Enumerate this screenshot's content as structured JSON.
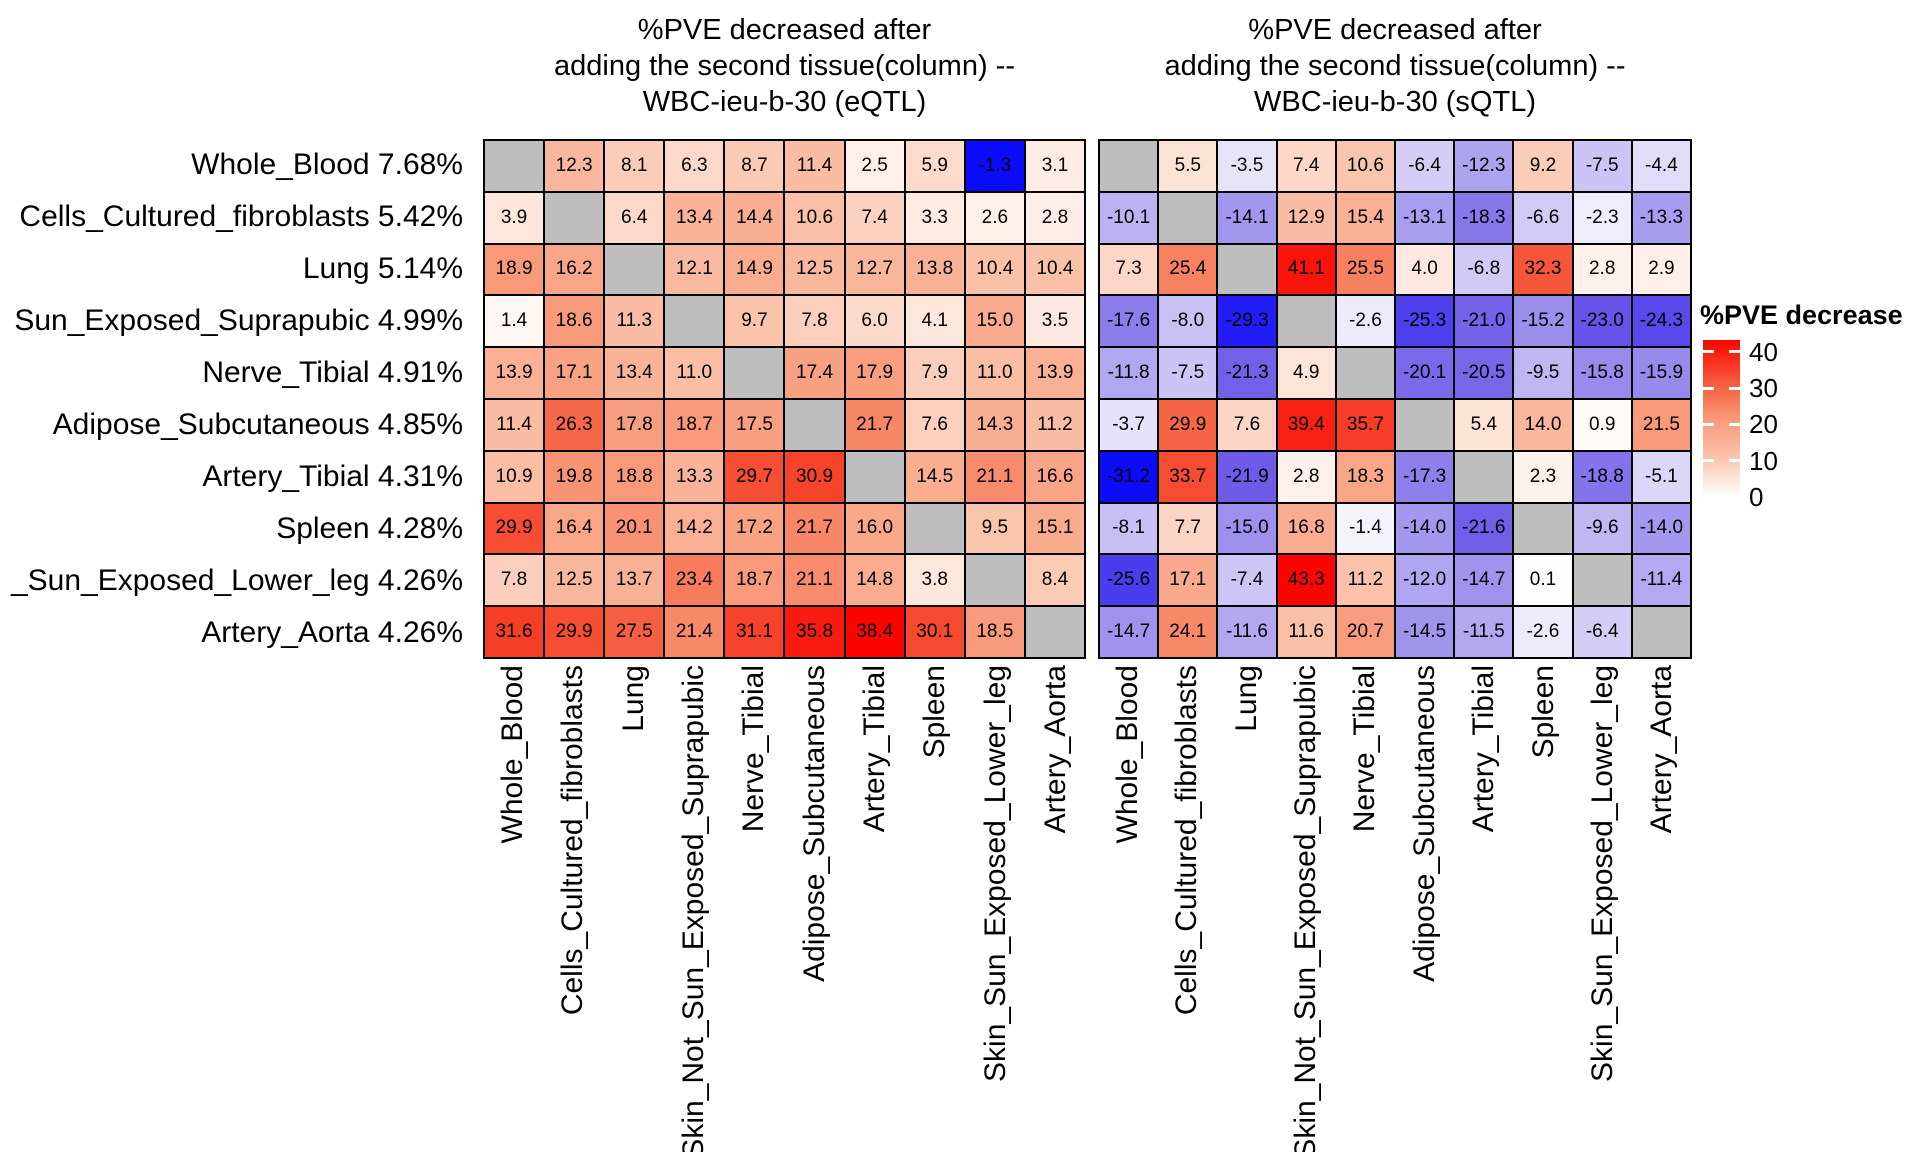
{
  "figure": {
    "background": "#ffffff",
    "na_cell_color": "#bebebe",
    "grid_line_color": "#000000",
    "text_color": "#000000"
  },
  "titles": {
    "left_lines": [
      "%PVE decreased after",
      "adding the second tissue(column) --",
      "WBC-ieu-b-30 (eQTL)"
    ],
    "right_lines": [
      "%PVE decreased after",
      "adding the second tissue(column) --",
      "WBC-ieu-b-30 (sQTL)"
    ]
  },
  "row_labels": [
    "Whole_Blood 7.68%",
    "Cells_Cultured_fibroblasts 5.42%",
    "Lung 5.14%",
    "Sun_Exposed_Suprapubic 4.99%",
    "Nerve_Tibial 4.91%",
    "Adipose_Subcutaneous 4.85%",
    "Artery_Tibial 4.31%",
    "Spleen 4.28%",
    "_Sun_Exposed_Lower_leg 4.26%",
    "Artery_Aorta 4.26%"
  ],
  "col_labels": [
    "Whole_Blood",
    "Cells_Cultured_fibroblasts",
    "Lung",
    "Skin_Not_Sun_Exposed_Suprapubic",
    "Nerve_Tibial",
    "Adipose_Subcutaneous",
    "Artery_Tibial",
    "Spleen",
    "Skin_Sun_Exposed_Lower_leg",
    "Artery_Aorta"
  ],
  "legend": {
    "title": "%PVE decrease",
    "ticks": [
      40,
      30,
      20,
      10,
      0
    ],
    "scale_max": 43.3,
    "top_color": "#fa0500",
    "bottom_color": "#ffffff"
  },
  "chart_data": [
    {
      "type": "heatmap",
      "name": "eQTL",
      "title": "%PVE decreased after adding the second tissue(column) -- WBC-ieu-b-30 (eQTL)",
      "rows": [
        "Whole_Blood 7.68%",
        "Cells_Cultured_fibroblasts 5.42%",
        "Lung 5.14%",
        "Sun_Exposed_Suprapubic 4.99%",
        "Nerve_Tibial 4.91%",
        "Adipose_Subcutaneous 4.85%",
        "Artery_Tibial 4.31%",
        "Spleen 4.28%",
        "_Sun_Exposed_Lower_leg 4.26%",
        "Artery_Aorta 4.26%"
      ],
      "columns": [
        "Whole_Blood",
        "Cells_Cultured_fibroblasts",
        "Lung",
        "Skin_Not_Sun_Exposed_Suprapubic",
        "Nerve_Tibial",
        "Adipose_Subcutaneous",
        "Artery_Tibial",
        "Spleen",
        "Skin_Sun_Exposed_Lower_leg",
        "Artery_Aorta"
      ],
      "diagonal": "NA gray cells",
      "values": [
        [
          null,
          12.3,
          8.1,
          6.3,
          8.7,
          11.4,
          2.5,
          5.9,
          -1.3,
          3.1
        ],
        [
          3.9,
          null,
          6.4,
          13.4,
          14.4,
          10.6,
          7.4,
          3.3,
          2.6,
          2.8
        ],
        [
          18.9,
          16.2,
          null,
          12.1,
          14.9,
          12.5,
          12.7,
          13.8,
          10.4,
          10.4
        ],
        [
          1.4,
          18.6,
          11.3,
          null,
          9.7,
          7.8,
          6.0,
          4.1,
          15.0,
          3.5
        ],
        [
          13.9,
          17.1,
          13.4,
          11.0,
          null,
          17.4,
          17.9,
          7.9,
          11.0,
          13.9
        ],
        [
          11.4,
          26.3,
          17.8,
          18.7,
          17.5,
          null,
          21.7,
          7.6,
          14.3,
          11.2
        ],
        [
          10.9,
          19.8,
          18.8,
          13.3,
          29.7,
          30.9,
          null,
          14.5,
          21.1,
          16.6
        ],
        [
          29.9,
          16.4,
          20.1,
          14.2,
          17.2,
          21.7,
          16.0,
          null,
          9.5,
          15.1
        ],
        [
          7.8,
          12.5,
          13.7,
          23.4,
          18.7,
          21.1,
          14.8,
          3.8,
          null,
          8.4
        ],
        [
          31.6,
          29.9,
          27.5,
          21.4,
          31.1,
          35.8,
          38.4,
          30.1,
          18.5,
          null
        ]
      ]
    },
    {
      "type": "heatmap",
      "name": "sQTL",
      "title": "%PVE decreased after adding the second tissue(column) -- WBC-ieu-b-30 (sQTL)",
      "rows": [
        "Whole_Blood 7.68%",
        "Cells_Cultured_fibroblasts 5.42%",
        "Lung 5.14%",
        "Sun_Exposed_Suprapubic 4.99%",
        "Nerve_Tibial 4.91%",
        "Adipose_Subcutaneous 4.85%",
        "Artery_Tibial 4.31%",
        "Spleen 4.28%",
        "_Sun_Exposed_Lower_leg 4.26%",
        "Artery_Aorta 4.26%"
      ],
      "columns": [
        "Whole_Blood",
        "Cells_Cultured_fibroblasts",
        "Lung",
        "Skin_Not_Sun_Exposed_Suprapubic",
        "Nerve_Tibial",
        "Adipose_Subcutaneous",
        "Artery_Tibial",
        "Spleen",
        "Skin_Sun_Exposed_Lower_leg",
        "Artery_Aorta"
      ],
      "diagonal": "NA gray cells",
      "values": [
        [
          null,
          5.5,
          -3.5,
          7.4,
          10.6,
          -6.4,
          -12.3,
          9.2,
          -7.5,
          -4.4
        ],
        [
          -10.1,
          null,
          -14.1,
          12.9,
          15.4,
          -13.1,
          -18.3,
          -6.6,
          -2.3,
          -13.3
        ],
        [
          7.3,
          25.4,
          null,
          41.1,
          25.5,
          4.0,
          -6.8,
          32.3,
          2.8,
          2.9
        ],
        [
          -17.6,
          -8.0,
          -29.3,
          null,
          -2.6,
          -25.3,
          -21.0,
          -15.2,
          -23.0,
          -24.3
        ],
        [
          -11.8,
          -7.5,
          -21.3,
          4.9,
          null,
          -20.1,
          -20.5,
          -9.5,
          -15.8,
          -15.9
        ],
        [
          -3.7,
          29.9,
          7.6,
          39.4,
          35.7,
          null,
          5.4,
          14.0,
          0.9,
          21.5
        ],
        [
          -31.2,
          33.7,
          -21.9,
          2.8,
          18.3,
          -17.3,
          null,
          2.3,
          -18.8,
          -5.1
        ],
        [
          -8.1,
          7.7,
          -15.0,
          16.8,
          -1.4,
          -14.0,
          -21.6,
          null,
          -9.6,
          -14.0
        ],
        [
          -25.6,
          17.1,
          -7.4,
          43.3,
          11.2,
          -12.0,
          -14.7,
          0.1,
          null,
          -11.4
        ],
        [
          -14.7,
          24.1,
          -11.6,
          11.6,
          20.7,
          -14.5,
          -11.5,
          -2.6,
          -6.4,
          null
        ]
      ]
    }
  ]
}
